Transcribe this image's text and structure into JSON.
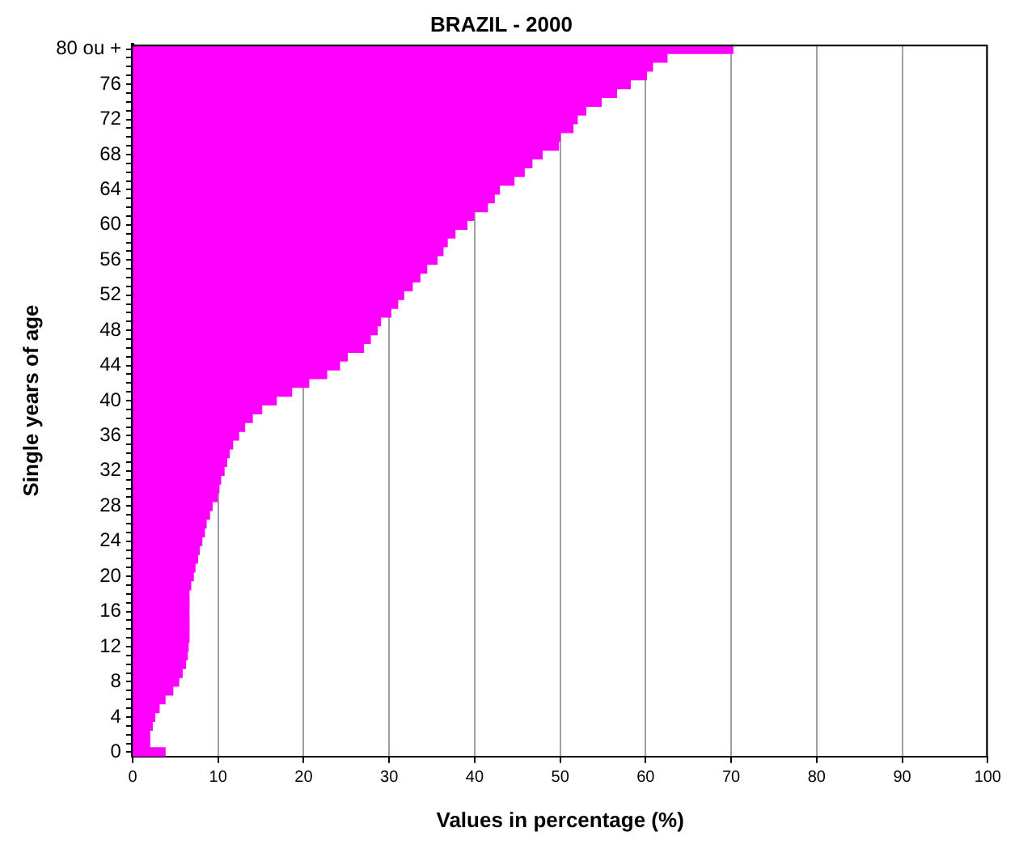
{
  "chart_data": {
    "type": "bar",
    "orientation": "horizontal",
    "title": "BRAZIL - 2000",
    "xlabel": "Values in percentage (%)",
    "ylabel": "Single years of age",
    "categories": [
      "80 ou +",
      null,
      null,
      null,
      "76",
      null,
      null,
      null,
      "72",
      null,
      null,
      null,
      "68",
      null,
      null,
      null,
      "64",
      null,
      null,
      null,
      "60",
      null,
      null,
      null,
      "56",
      null,
      null,
      null,
      "52",
      null,
      null,
      null,
      "48",
      null,
      null,
      null,
      "44",
      null,
      null,
      null,
      "40",
      null,
      null,
      null,
      "36",
      null,
      null,
      null,
      "32",
      null,
      null,
      null,
      "28",
      null,
      null,
      null,
      "24",
      null,
      null,
      null,
      "20",
      null,
      null,
      null,
      "16",
      null,
      null,
      null,
      "12",
      null,
      null,
      null,
      "8",
      null,
      null,
      null,
      "4",
      null,
      null,
      null,
      "0"
    ],
    "values": [
      70.2,
      62.5,
      60.8,
      60.1,
      58.2,
      56.6,
      54.8,
      53.0,
      52.0,
      51.5,
      50.0,
      49.8,
      47.9,
      46.7,
      45.8,
      44.6,
      42.9,
      42.3,
      41.5,
      39.9,
      39.1,
      37.7,
      36.8,
      36.3,
      35.6,
      34.4,
      33.6,
      32.7,
      31.7,
      31.0,
      30.2,
      29.0,
      28.6,
      27.8,
      27.0,
      25.1,
      24.2,
      22.7,
      20.6,
      18.6,
      16.8,
      15.1,
      14.0,
      13.1,
      12.4,
      11.7,
      11.3,
      11.0,
      10.7,
      10.3,
      10.1,
      9.9,
      9.3,
      9.0,
      8.6,
      8.4,
      8.1,
      7.8,
      7.6,
      7.3,
      7.1,
      6.8,
      6.6,
      6.6,
      6.6,
      6.6,
      6.6,
      6.6,
      6.5,
      6.4,
      6.2,
      5.8,
      5.4,
      4.7,
      3.8,
      3.1,
      2.6,
      2.3,
      2.0,
      2.0,
      3.8
    ],
    "color": "#ff00ff",
    "xlim": [
      0,
      100
    ],
    "xticks": [
      0,
      10,
      20,
      30,
      40,
      50,
      60,
      70,
      80,
      90,
      100
    ],
    "grid": "x",
    "legend": false
  }
}
